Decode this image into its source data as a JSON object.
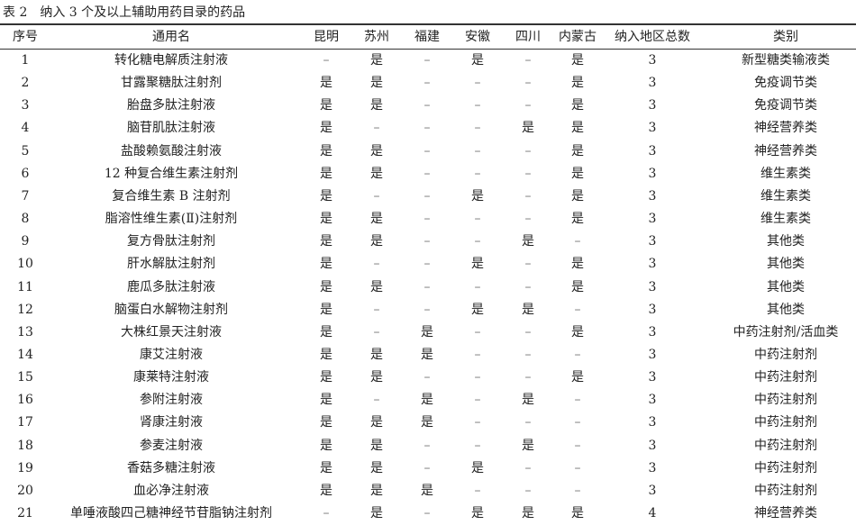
{
  "table": {
    "caption": "表 2　纳入 3 个及以上辅助用药目录的药品",
    "headers": [
      "序号",
      "通用名",
      "昆明",
      "苏州",
      "福建",
      "安徽",
      "四川",
      "内蒙古",
      "纳入地区总数",
      "类别"
    ],
    "rows": [
      [
        "1",
        "转化糖电解质注射液",
        "–",
        "是",
        "–",
        "是",
        "–",
        "是",
        "3",
        "新型糖类输液类"
      ],
      [
        "2",
        "甘露聚糖肽注射剂",
        "是",
        "是",
        "–",
        "–",
        "–",
        "是",
        "3",
        "免疫调节类"
      ],
      [
        "3",
        "胎盘多肽注射液",
        "是",
        "是",
        "–",
        "–",
        "–",
        "是",
        "3",
        "免疫调节类"
      ],
      [
        "4",
        "脑苷肌肽注射液",
        "是",
        "–",
        "–",
        "–",
        "是",
        "是",
        "3",
        "神经营养类"
      ],
      [
        "5",
        "盐酸赖氨酸注射液",
        "是",
        "是",
        "–",
        "–",
        "–",
        "是",
        "3",
        "神经营养类"
      ],
      [
        "6",
        "12 种复合维生素注射剂",
        "是",
        "是",
        "–",
        "–",
        "–",
        "是",
        "3",
        "维生素类"
      ],
      [
        "7",
        "复合维生素 B 注射剂",
        "是",
        "–",
        "–",
        "是",
        "–",
        "是",
        "3",
        "维生素类"
      ],
      [
        "8",
        "脂溶性维生素(Ⅱ)注射剂",
        "是",
        "是",
        "–",
        "–",
        "–",
        "是",
        "3",
        "维生素类"
      ],
      [
        "9",
        "复方骨肽注射剂",
        "是",
        "是",
        "–",
        "–",
        "是",
        "–",
        "3",
        "其他类"
      ],
      [
        "10",
        "肝水解肽注射剂",
        "是",
        "–",
        "–",
        "是",
        "–",
        "是",
        "3",
        "其他类"
      ],
      [
        "11",
        "鹿瓜多肽注射液",
        "是",
        "是",
        "–",
        "–",
        "–",
        "是",
        "3",
        "其他类"
      ],
      [
        "12",
        "脑蛋白水解物注射剂",
        "是",
        "–",
        "–",
        "是",
        "是",
        "–",
        "3",
        "其他类"
      ],
      [
        "13",
        "大株红景天注射液",
        "是",
        "–",
        "是",
        "–",
        "–",
        "是",
        "3",
        "中药注射剂/活血类"
      ],
      [
        "14",
        "康艾注射液",
        "是",
        "是",
        "是",
        "–",
        "–",
        "–",
        "3",
        "中药注射剂"
      ],
      [
        "15",
        "康莱特注射液",
        "是",
        "是",
        "–",
        "–",
        "–",
        "是",
        "3",
        "中药注射剂"
      ],
      [
        "16",
        "参附注射液",
        "是",
        "–",
        "是",
        "–",
        "是",
        "–",
        "3",
        "中药注射剂"
      ],
      [
        "17",
        "肾康注射液",
        "是",
        "是",
        "是",
        "–",
        "–",
        "–",
        "3",
        "中药注射剂"
      ],
      [
        "18",
        "参麦注射液",
        "是",
        "是",
        "–",
        "–",
        "是",
        "–",
        "3",
        "中药注射剂"
      ],
      [
        "19",
        "香菇多糖注射液",
        "是",
        "是",
        "–",
        "是",
        "–",
        "–",
        "3",
        "中药注射剂"
      ],
      [
        "20",
        "血必净注射液",
        "是",
        "是",
        "是",
        "–",
        "–",
        "–",
        "3",
        "中药注射剂"
      ],
      [
        "21",
        "单唾液酸四己糖神经节苷脂钠注射剂",
        "–",
        "是",
        "–",
        "是",
        "是",
        "是",
        "4",
        "神经营养类"
      ]
    ]
  }
}
